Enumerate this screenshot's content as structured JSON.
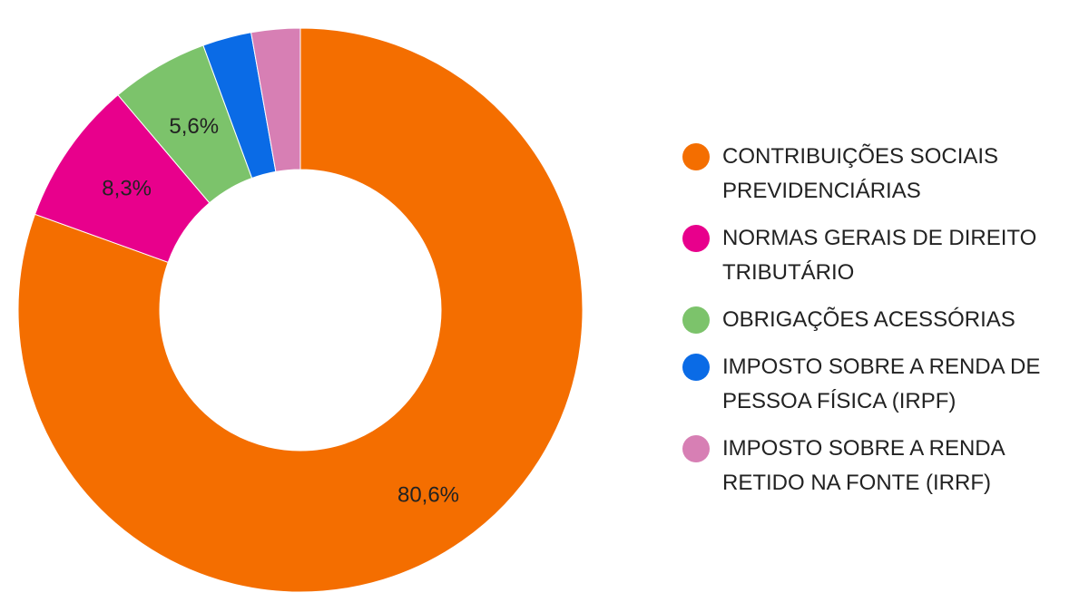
{
  "chart_data": {
    "type": "pie",
    "variant": "donut",
    "legend_position": "right",
    "series": [
      {
        "name": "CONTRIBUIÇÕES SOCIAIS PREVIDENCIÁRIAS",
        "value": 80.6,
        "label": "80,6%",
        "color": "#F46E00"
      },
      {
        "name": "NORMAS GERAIS DE DIREITO TRIBUTÁRIO",
        "value": 8.3,
        "label": "8,3%",
        "color": "#E8008C"
      },
      {
        "name": "OBRIGAÇÕES ACESSÓRIAS",
        "value": 5.6,
        "label": "5,6%",
        "color": "#7CC36B"
      },
      {
        "name": "IMPOSTO SOBRE A RENDA DE PESSOA FÍSICA (IRPF)",
        "value": 2.8,
        "label": "",
        "color": "#0A6BE6"
      },
      {
        "name": "IMPOSTO SOBRE A RENDA RETIDO NA FONTE (IRRF)",
        "value": 2.8,
        "label": "",
        "color": "#D77FB4"
      }
    ]
  }
}
